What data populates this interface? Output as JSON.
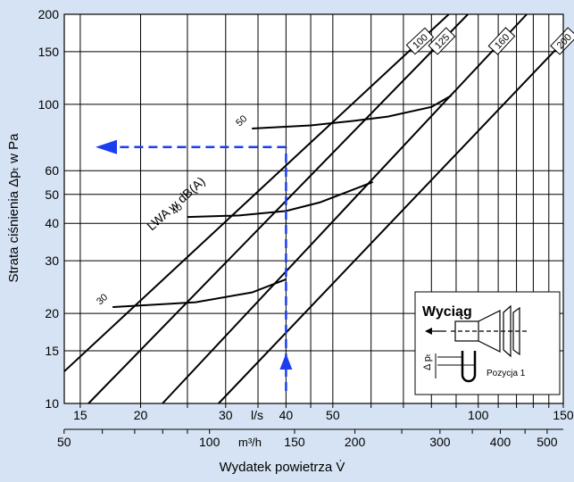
{
  "chart_data": {
    "type": "line",
    "ylabel": "Strata ciśnienia Δpₜ w Pa",
    "xlabel": "Wydatek powietrza V̇",
    "x_unit_top": "l/s",
    "x_unit_bottom": "m³/h",
    "x_scale": "log",
    "y_scale": "log",
    "ylim": [
      10,
      200
    ],
    "xlim_ls": [
      13.9,
      150
    ],
    "grid": true,
    "y_ticks": [
      10,
      15,
      20,
      30,
      40,
      50,
      60,
      100,
      150,
      200
    ],
    "x_ticks_ls": [
      15,
      20,
      30,
      40,
      50,
      100,
      150
    ],
    "x_ticks_m3h": [
      50,
      100,
      150,
      200,
      300,
      400,
      500
    ],
    "series": [
      {
        "name": "100",
        "x": [
          13.9,
          86.9
        ],
        "y": [
          12.8,
          200
        ]
      },
      {
        "name": "125",
        "x": [
          15.6,
          95.2
        ],
        "y": [
          10,
          200
        ]
      },
      {
        "name": "160",
        "x": [
          22.2,
          126
        ],
        "y": [
          10,
          200
        ]
      },
      {
        "name": "200",
        "x": [
          29.0,
          150
        ],
        "y": [
          10,
          162
        ]
      }
    ],
    "sound_curves": [
      {
        "label": "30",
        "x": [
          17.5,
          26,
          34,
          40
        ],
        "y": [
          21,
          21.8,
          23.5,
          26
        ]
      },
      {
        "label": "40",
        "x": [
          25,
          32,
          40,
          47,
          60.5
        ],
        "y": [
          42,
          42.5,
          44,
          47,
          55
        ]
      },
      {
        "label": "50",
        "x": [
          34,
          45,
          55,
          65,
          80,
          88
        ],
        "y": [
          83,
          85,
          88,
          91,
          98,
          107
        ]
      }
    ],
    "sound_axis_label": "LWA w dB(A)",
    "working_point": {
      "x_ls": 40,
      "y_pa": 72
    },
    "inset": {
      "title": "Wyciąg",
      "dp_label": "Δ pₜ",
      "position_label": "Pozycja 1"
    },
    "colors": {
      "background": "#d6e3f4",
      "plot": "#ffffff",
      "line": "#000000",
      "marker": "#1a3ef0"
    }
  }
}
